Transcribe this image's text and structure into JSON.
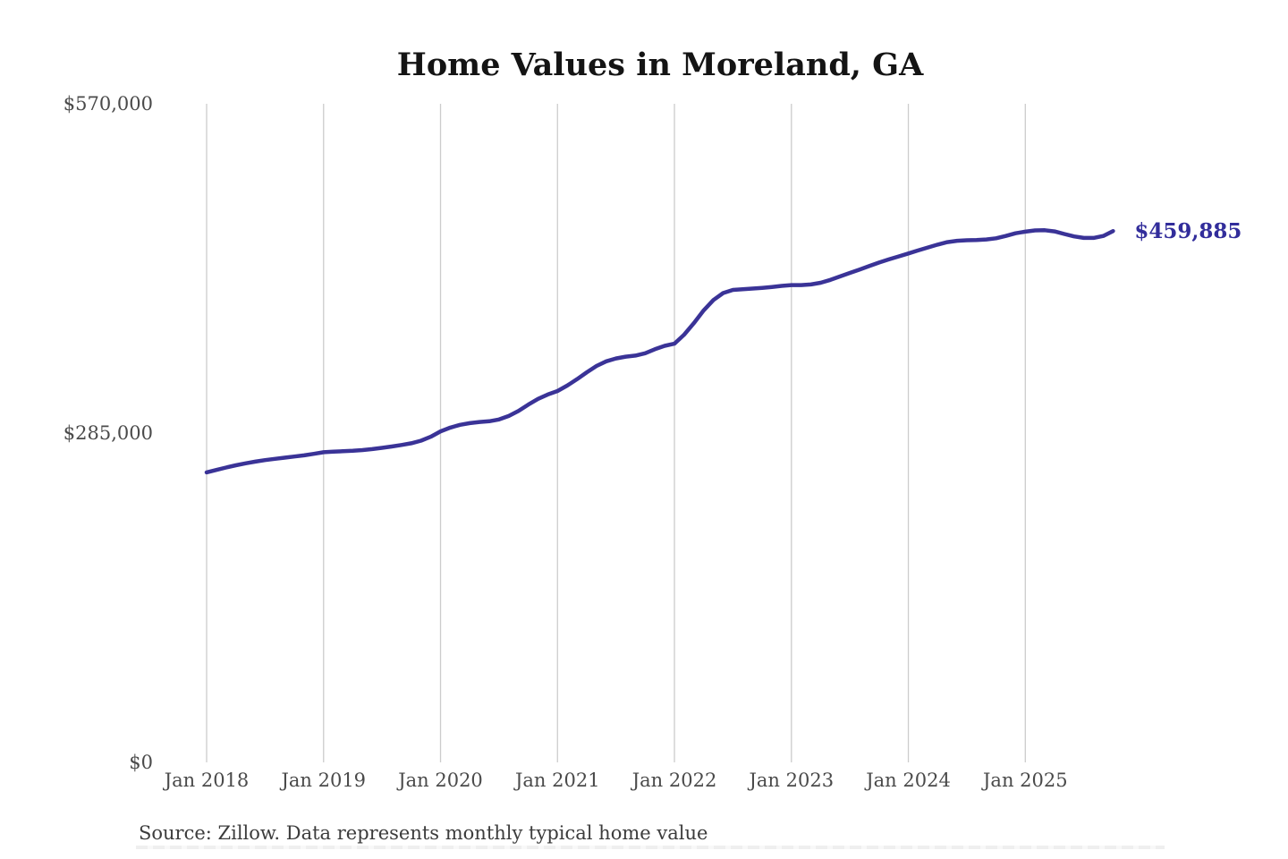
{
  "chart_data": {
    "type": "line",
    "title": "Home Values in Moreland, GA",
    "series_name": "Monthly typical home value",
    "xlabel": "",
    "ylabel": "",
    "ylim": [
      0,
      570000
    ],
    "grid": "vertical-only",
    "legend": "none",
    "line_color": "#3a3397",
    "last_label_color": "#322d9b",
    "grid_color": "#cccccc",
    "last_value_label": "$459,885",
    "yticks": [
      {
        "value": 0,
        "label": "$0"
      },
      {
        "value": 285000,
        "label": "$285,000"
      },
      {
        "value": 570000,
        "label": "$570,000"
      }
    ],
    "xticks": [
      {
        "index": 0,
        "label": "Jan 2018"
      },
      {
        "index": 12,
        "label": "Jan 2019"
      },
      {
        "index": 24,
        "label": "Jan 2020"
      },
      {
        "index": 36,
        "label": "Jan 2021"
      },
      {
        "index": 48,
        "label": "Jan 2022"
      },
      {
        "index": 60,
        "label": "Jan 2023"
      },
      {
        "index": 72,
        "label": "Jan 2024"
      },
      {
        "index": 84,
        "label": "Jan 2025"
      }
    ],
    "x": [
      "Jan 2018",
      "Feb 2018",
      "Mar 2018",
      "Apr 2018",
      "May 2018",
      "Jun 2018",
      "Jul 2018",
      "Aug 2018",
      "Sep 2018",
      "Oct 2018",
      "Nov 2018",
      "Dec 2018",
      "Jan 2019",
      "Feb 2019",
      "Mar 2019",
      "Apr 2019",
      "May 2019",
      "Jun 2019",
      "Jul 2019",
      "Aug 2019",
      "Sep 2019",
      "Oct 2019",
      "Nov 2019",
      "Dec 2019",
      "Jan 2020",
      "Feb 2020",
      "Mar 2020",
      "Apr 2020",
      "May 2020",
      "Jun 2020",
      "Jul 2020",
      "Aug 2020",
      "Sep 2020",
      "Oct 2020",
      "Nov 2020",
      "Dec 2020",
      "Jan 2021",
      "Feb 2021",
      "Mar 2021",
      "Apr 2021",
      "May 2021",
      "Jun 2021",
      "Jul 2021",
      "Aug 2021",
      "Sep 2021",
      "Oct 2021",
      "Nov 2021",
      "Dec 2021",
      "Jan 2022",
      "Feb 2022",
      "Mar 2022",
      "Apr 2022",
      "May 2022",
      "Jun 2022",
      "Jul 2022",
      "Aug 2022",
      "Sep 2022",
      "Oct 2022",
      "Nov 2022",
      "Dec 2022",
      "Jan 2023",
      "Feb 2023",
      "Mar 2023",
      "Apr 2023",
      "May 2023",
      "Jun 2023",
      "Jul 2023",
      "Aug 2023",
      "Sep 2023",
      "Oct 2023",
      "Nov 2023",
      "Dec 2023",
      "Jan 2024",
      "Feb 2024",
      "Mar 2024",
      "Apr 2024",
      "May 2024",
      "Jun 2024",
      "Jul 2024",
      "Aug 2024",
      "Sep 2024",
      "Oct 2024",
      "Nov 2024",
      "Dec 2024",
      "Jan 2025",
      "Feb 2025",
      "Mar 2025",
      "Apr 2025",
      "May 2025",
      "Jun 2025",
      "Jul 2025",
      "Aug 2025",
      "Sep 2025",
      "Oct 2025"
    ],
    "values": [
      251000,
      253100,
      255200,
      257100,
      258800,
      260300,
      261600,
      262700,
      263700,
      264700,
      265700,
      267000,
      268400,
      268900,
      269300,
      269700,
      270300,
      271100,
      272200,
      273400,
      274700,
      276200,
      278400,
      281800,
      286500,
      289700,
      292100,
      293600,
      294600,
      295200,
      296800,
      299800,
      304100,
      309600,
      314600,
      318400,
      321400,
      326100,
      331600,
      337600,
      343100,
      347100,
      349600,
      351100,
      352100,
      354100,
      357600,
      360500,
      362400,
      370200,
      380200,
      391200,
      400200,
      406200,
      408900,
      409500,
      410100,
      410700,
      411500,
      412400,
      413100,
      413100,
      413600,
      415100,
      417600,
      420600,
      423600,
      426600,
      429600,
      432600,
      435300,
      437900,
      440400,
      443100,
      445600,
      448100,
      450300,
      451400,
      451900,
      452100,
      452600,
      453600,
      455600,
      457900,
      459300,
      460400,
      460600,
      459600,
      457300,
      455200,
      453900,
      453900,
      455600,
      459885
    ]
  },
  "source_note": "Source: Zillow. Data represents monthly typical home value"
}
